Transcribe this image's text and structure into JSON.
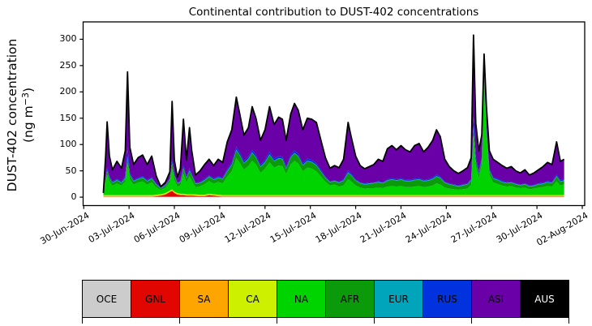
{
  "title": "Continental contribution to DUST-402 concentrations",
  "ylabel": {
    "line1": "DUST-402 concentration",
    "line2_pre": "(ng m",
    "line2_sup": "−3",
    "line2_post": ")"
  },
  "chart_data": {
    "type": "area",
    "stacked": true,
    "title": "Continental contribution to DUST-402 concentrations",
    "ylabel": "DUST-402 concentration (ng m−3)",
    "x_unit": "days since 30-Jun-2024",
    "grid": false,
    "xlim": [
      -0.04,
      33.16
    ],
    "ylim": [
      -16,
      333
    ],
    "y_ticks": [
      0,
      50,
      100,
      150,
      200,
      250,
      300
    ],
    "x_ticks": [
      0,
      3,
      6,
      9,
      12,
      15,
      18,
      21,
      24,
      27,
      30,
      33
    ],
    "x_tick_labels": [
      "30-Jun-2024",
      "03-Jul-2024",
      "06-Jul-2024",
      "09-Jul-2024",
      "12-Jul-2024",
      "15-Jul-2024",
      "18-Jul-2024",
      "21-Jul-2024",
      "24-Jul-2024",
      "27-Jul-2024",
      "30-Jul-2024",
      "02-Aug-2024"
    ],
    "series_order": [
      "OCE",
      "GNL",
      "SA",
      "CA",
      "NA",
      "AFR",
      "EUR",
      "RUS",
      "ASI",
      "AUS"
    ],
    "x": [
      1.3,
      1.45,
      1.55,
      1.7,
      1.9,
      2.2,
      2.5,
      2.75,
      2.9,
      3.05,
      3.3,
      3.6,
      3.9,
      4.2,
      4.5,
      4.8,
      5.1,
      5.4,
      5.7,
      5.85,
      6.0,
      6.2,
      6.4,
      6.6,
      6.8,
      7.0,
      7.15,
      7.4,
      7.7,
      8.0,
      8.3,
      8.6,
      8.9,
      9.2,
      9.5,
      9.8,
      10.1,
      10.35,
      10.6,
      10.9,
      11.15,
      11.4,
      11.7,
      12.0,
      12.3,
      12.6,
      12.9,
      13.15,
      13.4,
      13.7,
      13.95,
      14.2,
      14.5,
      14.8,
      15.1,
      15.4,
      15.7,
      16.0,
      16.3,
      16.6,
      16.9,
      17.2,
      17.5,
      17.7,
      18.0,
      18.3,
      18.6,
      18.9,
      19.2,
      19.5,
      19.8,
      20.1,
      20.4,
      20.7,
      21.0,
      21.3,
      21.6,
      21.9,
      22.2,
      22.5,
      22.8,
      23.1,
      23.35,
      23.6,
      23.9,
      24.2,
      24.5,
      24.8,
      25.1,
      25.4,
      25.65,
      25.8,
      25.95,
      26.15,
      26.35,
      26.5,
      26.65,
      26.85,
      27.1,
      27.4,
      27.7,
      28.0,
      28.3,
      28.6,
      28.9,
      29.2,
      29.5,
      29.8,
      30.1,
      30.4,
      30.7,
      31.0,
      31.3,
      31.55,
      31.8
    ],
    "total": [
      8,
      78,
      143,
      78,
      52,
      68,
      55,
      88,
      238,
      95,
      62,
      75,
      80,
      62,
      78,
      40,
      20,
      28,
      48,
      182,
      70,
      38,
      55,
      148,
      70,
      132,
      88,
      42,
      50,
      62,
      72,
      60,
      72,
      66,
      105,
      128,
      190,
      155,
      118,
      132,
      172,
      150,
      108,
      128,
      172,
      138,
      152,
      148,
      108,
      158,
      178,
      165,
      128,
      150,
      148,
      142,
      108,
      75,
      55,
      60,
      56,
      72,
      142,
      115,
      78,
      60,
      54,
      58,
      62,
      72,
      68,
      92,
      98,
      90,
      98,
      90,
      86,
      98,
      102,
      86,
      95,
      108,
      128,
      115,
      72,
      58,
      50,
      45,
      50,
      56,
      75,
      308,
      140,
      88,
      118,
      272,
      175,
      88,
      72,
      66,
      60,
      55,
      58,
      50,
      46,
      52,
      42,
      46,
      52,
      58,
      66,
      62,
      105,
      68,
      72
    ],
    "series": {
      "OCE": 0.8,
      "GNL": [
        0.3,
        0.3,
        0.3,
        0.3,
        0.3,
        0.3,
        0.3,
        0.3,
        0.3,
        0.3,
        0.3,
        0.3,
        0.3,
        0.3,
        0.3,
        1,
        2,
        4,
        9,
        11,
        7,
        4,
        3,
        3,
        2,
        2,
        2,
        1.5,
        1,
        1,
        3,
        2,
        1,
        0.5,
        0.5,
        0.5,
        0.5,
        0.5,
        0.5,
        0.5,
        0.5,
        0.5,
        0.5,
        0.5,
        0.5,
        0.5,
        0.5,
        0.5,
        0.5,
        0.5,
        0.5,
        0.5,
        0.5,
        0.5,
        0.5,
        0.5,
        0.5,
        0.5,
        0.5,
        0.5,
        0.5,
        0.5,
        0.5,
        0.5,
        0.5,
        0.5,
        0.5,
        0.5,
        0.5,
        0.5,
        0.5,
        0.5,
        0.5,
        0.5,
        0.5,
        0.5,
        0.5,
        0.5,
        0.5,
        0.5,
        0.5,
        0.5,
        0.5,
        0.5,
        0.5,
        0.5,
        0.5,
        0.5,
        0.5,
        0.5,
        0.5,
        0.5,
        0.5,
        0.5,
        0.5,
        0.5,
        0.5,
        0.5,
        0.5,
        0.5,
        0.5,
        0.5,
        0.5,
        0.5,
        0.5,
        0.5,
        0.5,
        0.5,
        0.5,
        0.5,
        0.5,
        0.5,
        0.5,
        0.5,
        0.5
      ],
      "SA": 1.2,
      "CA": 1.6,
      "NA": [
        2,
        25,
        38,
        26,
        18,
        22,
        18,
        26,
        62,
        30,
        20,
        24,
        26,
        20,
        24,
        14,
        8,
        10,
        16,
        40,
        22,
        12,
        16,
        38,
        22,
        34,
        26,
        14,
        16,
        20,
        24,
        20,
        24,
        22,
        35,
        45,
        70,
        60,
        48,
        55,
        65,
        58,
        42,
        50,
        62,
        52,
        56,
        55,
        40,
        58,
        65,
        60,
        45,
        52,
        50,
        45,
        35,
        25,
        18,
        20,
        16,
        18,
        30,
        26,
        18,
        14,
        12,
        13,
        13,
        14,
        13,
        16,
        17,
        16,
        17,
        15,
        15,
        16,
        17,
        15,
        16,
        18,
        22,
        20,
        14,
        12,
        11,
        10,
        11,
        12,
        20,
        115,
        55,
        32,
        58,
        222,
        118,
        38,
        24,
        21,
        18,
        16,
        17,
        14,
        13,
        14,
        11,
        12,
        14,
        15,
        17,
        16,
        26,
        18,
        20
      ],
      "AFR": [
        1,
        5,
        8,
        6,
        5,
        6,
        5,
        6,
        10,
        8,
        6,
        6,
        7,
        6,
        7,
        5,
        3,
        4,
        5,
        10,
        8,
        6,
        6,
        10,
        8,
        10,
        9,
        6,
        6,
        7,
        8,
        7,
        8,
        8,
        10,
        12,
        15,
        14,
        12,
        13,
        15,
        13,
        11,
        12,
        14,
        12,
        13,
        13,
        10,
        13,
        14,
        13,
        11,
        12,
        12,
        11,
        9,
        7,
        6,
        6,
        7,
        9,
        12,
        11,
        9,
        8,
        8,
        8,
        9,
        10,
        9,
        11,
        12,
        11,
        12,
        11,
        11,
        12,
        12,
        11,
        11,
        12,
        13,
        12,
        9,
        8,
        7,
        6,
        7,
        8,
        8,
        12,
        10,
        8,
        9,
        10,
        9,
        8,
        7,
        7,
        6,
        6,
        6,
        6,
        5,
        6,
        5,
        5,
        6,
        6,
        7,
        6,
        9,
        7,
        7
      ],
      "EUR": 1.0,
      "RUS": [
        0.5,
        2,
        5,
        3,
        2,
        2,
        2,
        3,
        18,
        4,
        2,
        2,
        2,
        2,
        2,
        1,
        1,
        1,
        1,
        6,
        2,
        1,
        1,
        5,
        2,
        4,
        3,
        1,
        1,
        2,
        2,
        2,
        2,
        2,
        3,
        4,
        6,
        5,
        4,
        4,
        5,
        4,
        3,
        4,
        5,
        4,
        4,
        4,
        3,
        4,
        5,
        4,
        3,
        4,
        4,
        3,
        3,
        2,
        1,
        1,
        1,
        2,
        4,
        3,
        2,
        1,
        1,
        1,
        1,
        1,
        1,
        2,
        2,
        2,
        2,
        2,
        2,
        2,
        2,
        2,
        2,
        2,
        3,
        2,
        1,
        1,
        1,
        1,
        1,
        1,
        2,
        22,
        7,
        4,
        5,
        12,
        6,
        3,
        2,
        2,
        2,
        1,
        1,
        1,
        1,
        1,
        1,
        1,
        1,
        1,
        2,
        1,
        3,
        2,
        2
      ],
      "ASI": "remainder",
      "AUS": 0.3
    },
    "total_line_color": "#000000",
    "legend_position": "bottom",
    "legend": {
      "items": [
        {
          "label": "OCE",
          "color": "#cccccc",
          "text": "#000000"
        },
        {
          "label": "GNL",
          "color": "#e10600",
          "text": "#000000"
        },
        {
          "label": "SA",
          "color": "#ffa500",
          "text": "#000000"
        },
        {
          "label": "CA",
          "color": "#ccf000",
          "text": "#000000"
        },
        {
          "label": "NA",
          "color": "#00d400",
          "text": "#000000"
        },
        {
          "label": "AFR",
          "color": "#0a9a0a",
          "text": "#000000"
        },
        {
          "label": "EUR",
          "color": "#00a5bc",
          "text": "#000000"
        },
        {
          "label": "RUS",
          "color": "#0033dd",
          "text": "#000000"
        },
        {
          "label": "ASI",
          "color": "#6a00a8",
          "text": "#000000"
        },
        {
          "label": "AUS",
          "color": "#000000",
          "text": "#ffffff"
        }
      ]
    }
  }
}
